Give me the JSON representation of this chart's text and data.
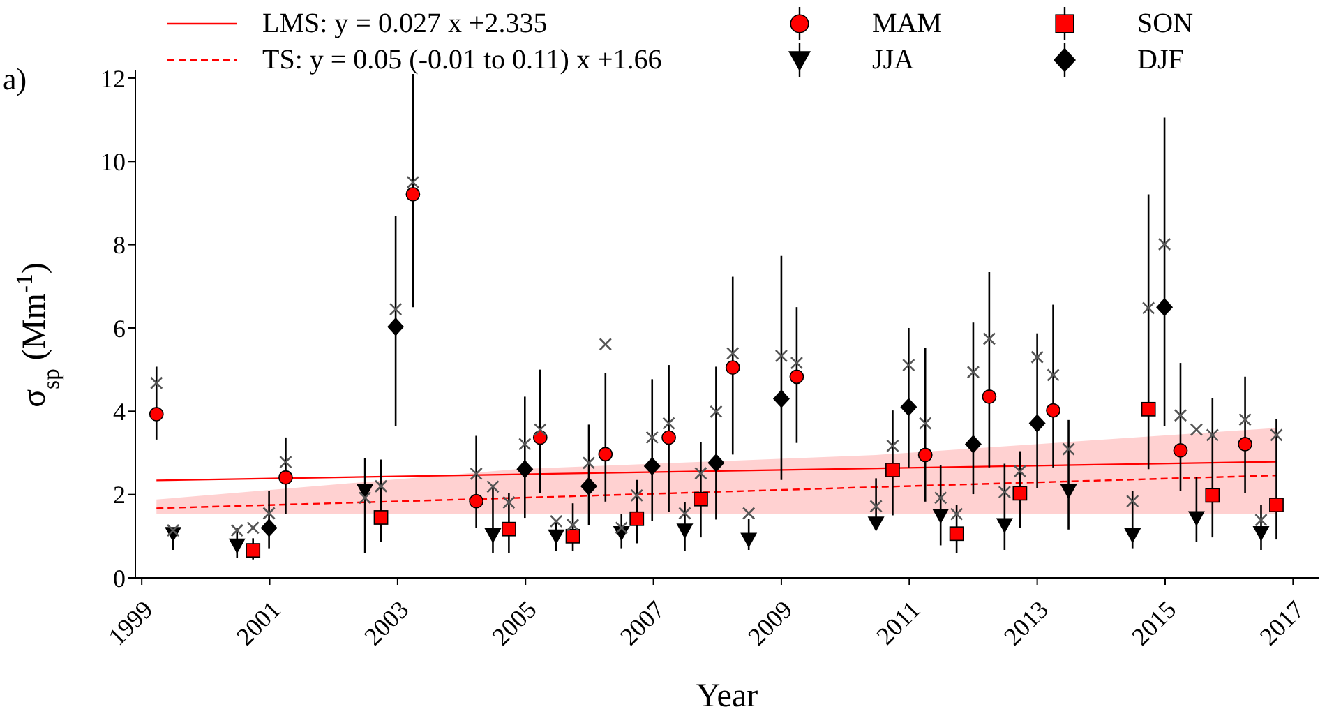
{
  "chart_data": {
    "type": "scatter",
    "xlabel": "Year",
    "ylabel": "σ$_{sp}$ (Mm$^{-1}$)",
    "annotations": [
      "a)"
    ],
    "xlim": [
      1998.9,
      2017.4
    ],
    "xticks": [
      1999,
      2001,
      2003,
      2005,
      2007,
      2009,
      2011,
      2013,
      2015,
      2017
    ],
    "ylim": [
      0,
      12.2
    ],
    "yticks": [
      0,
      2,
      4,
      6,
      8,
      10,
      12
    ],
    "grid": false,
    "legend": "top",
    "series": [
      {
        "name": "LMS: y = 0.027 x +2.335",
        "type": "line",
        "color": "#ff0000",
        "line_style": "solid",
        "marker": "none",
        "x": [
          1999.23,
          2016.74
        ],
        "values": [
          2.34,
          2.79
        ]
      },
      {
        "name": "TS: y = 0.05 (-0.01 to 0.11) x +1.66",
        "type": "line",
        "color": "#ff0000",
        "line_style": "dashed",
        "marker": "none",
        "x": [
          1999.23,
          2004.87,
          2010.48,
          2016.74
        ],
        "values": [
          1.67,
          1.92,
          2.18,
          2.46
        ],
        "lower": [
          1.54,
          1.53,
          1.53,
          1.53
        ],
        "upper": [
          1.88,
          2.61,
          2.95,
          3.6
        ]
      },
      {
        "name": "MAM",
        "color": "#ff0000",
        "marker": "circle",
        "x": [
          1999.23,
          2001.25,
          2003.24,
          2004.23,
          2005.23,
          2006.25,
          2007.24,
          2008.24,
          2009.24,
          2011.25,
          2012.25,
          2013.25,
          2015.24,
          2016.25
        ],
        "values": [
          3.93,
          2.41,
          9.21,
          1.84,
          3.37,
          2.97,
          3.37,
          5.05,
          4.83,
          2.95,
          4.35,
          4.02,
          3.06,
          3.21
        ],
        "errors": [
          [
            3.32,
            5.07
          ],
          [
            1.53,
            3.37
          ],
          [
            6.5,
            12.1
          ],
          [
            1.2,
            3.41
          ],
          [
            2.03,
            5.0
          ],
          [
            1.83,
            4.92
          ],
          [
            1.59,
            5.11
          ],
          [
            2.96,
            7.23
          ],
          [
            3.24,
            6.5
          ],
          [
            1.83,
            5.52
          ],
          [
            2.65,
            7.34
          ],
          [
            2.65,
            6.56
          ],
          [
            2.09,
            5.16
          ],
          [
            2.03,
            4.83
          ]
        ]
      },
      {
        "name": "JJA",
        "color": "#000000",
        "marker": "triangle",
        "x": [
          1999.49,
          2000.49,
          2002.49,
          2004.49,
          2005.48,
          2006.5,
          2007.49,
          2008.49,
          2010.48,
          2011.49,
          2012.49,
          2013.49,
          2014.49,
          2015.49,
          2016.5
        ],
        "values": [
          1.06,
          0.78,
          2.09,
          1.03,
          1.0,
          1.08,
          1.14,
          0.92,
          1.31,
          1.5,
          1.27,
          2.09,
          1.03,
          1.44,
          1.08
        ],
        "errors": [
          [
            0.67,
            1.2
          ],
          [
            0.47,
            1.2
          ],
          [
            0.6,
            2.87
          ],
          [
            0.6,
            2.19
          ],
          [
            0.64,
            1.36
          ],
          [
            0.71,
            1.53
          ],
          [
            0.64,
            1.81
          ],
          [
            0.67,
            1.42
          ],
          [
            1.14,
            2.39
          ],
          [
            0.78,
            2.71
          ],
          [
            0.67,
            2.74
          ],
          [
            1.16,
            3.79
          ],
          [
            0.71,
            2.09
          ],
          [
            0.86,
            2.42
          ],
          [
            0.67,
            1.75
          ]
        ]
      },
      {
        "name": "SON",
        "color": "#ff0000",
        "marker": "square",
        "x": [
          2000.74,
          2002.74,
          2004.74,
          2005.74,
          2006.74,
          2007.74,
          2010.74,
          2011.74,
          2012.73,
          2014.74,
          2015.74,
          2016.74
        ],
        "values": [
          0.66,
          1.45,
          1.17,
          1.0,
          1.42,
          1.89,
          2.59,
          1.06,
          2.03,
          4.05,
          1.98,
          1.75
        ],
        "errors": [
          [
            0.44,
            0.95
          ],
          [
            0.86,
            2.84
          ],
          [
            0.6,
            2.04
          ],
          [
            0.64,
            1.79
          ],
          [
            0.83,
            2.35
          ],
          [
            0.97,
            3.26
          ],
          [
            1.5,
            4.02
          ],
          [
            0.6,
            1.75
          ],
          [
            1.2,
            3.04
          ],
          [
            2.61,
            9.21
          ],
          [
            0.97,
            4.32
          ],
          [
            0.92,
            3.82
          ]
        ]
      },
      {
        "name": "DJF",
        "color": "#000000",
        "marker": "diamond",
        "x": [
          2000.99,
          2002.97,
          2004.99,
          2005.99,
          2006.98,
          2007.98,
          2009.0,
          2010.99,
          2012.0,
          2013.0,
          2014.99
        ],
        "values": [
          1.2,
          6.03,
          2.61,
          2.2,
          2.68,
          2.76,
          4.3,
          4.1,
          3.21,
          3.71,
          6.5
        ],
        "errors": [
          [
            0.71,
            2.09
          ],
          [
            3.65,
            8.68
          ],
          [
            1.44,
            4.35
          ],
          [
            1.27,
            3.68
          ],
          [
            1.36,
            4.77
          ],
          [
            1.4,
            5.07
          ],
          [
            2.35,
            7.73
          ],
          [
            2.65,
            6.0
          ],
          [
            2.01,
            6.13
          ],
          [
            2.15,
            5.87
          ],
          [
            3.65,
            11.05
          ]
        ]
      },
      {
        "color": "#555555",
        "marker": "cross",
        "x": [
          1999.23,
          1999.49,
          2000.49,
          2000.74,
          2000.99,
          2001.25,
          2002.49,
          2002.74,
          2002.97,
          2003.24,
          2004.23,
          2004.49,
          2004.74,
          2004.99,
          2005.23,
          2005.48,
          2005.74,
          2005.99,
          2006.25,
          2006.5,
          2006.74,
          2006.98,
          2007.24,
          2007.49,
          2007.74,
          2007.98,
          2008.24,
          2008.49,
          2009.0,
          2009.24,
          2010.48,
          2010.74,
          2010.99,
          2011.25,
          2011.49,
          2011.74,
          2012.0,
          2012.25,
          2012.49,
          2012.73,
          2013.0,
          2013.25,
          2013.49,
          2014.49,
          2014.74,
          2014.99,
          2015.24,
          2015.49,
          2015.74,
          2016.25,
          2016.5,
          2016.74
        ],
        "values": [
          4.68,
          1.14,
          1.14,
          1.2,
          1.55,
          2.78,
          1.92,
          2.2,
          6.45,
          9.5,
          2.5,
          2.19,
          1.81,
          3.21,
          3.56,
          1.36,
          1.27,
          2.76,
          5.61,
          1.2,
          1.98,
          3.37,
          3.71,
          1.55,
          2.51,
          3.99,
          5.39,
          1.55,
          5.33,
          5.16,
          1.72,
          3.17,
          5.11,
          3.71,
          1.92,
          1.53,
          4.94,
          5.74,
          2.06,
          2.56,
          5.3,
          4.87,
          3.09,
          1.84,
          6.48,
          8.01,
          3.9,
          3.56,
          3.43,
          3.8,
          1.39,
          3.43
        ]
      }
    ]
  }
}
